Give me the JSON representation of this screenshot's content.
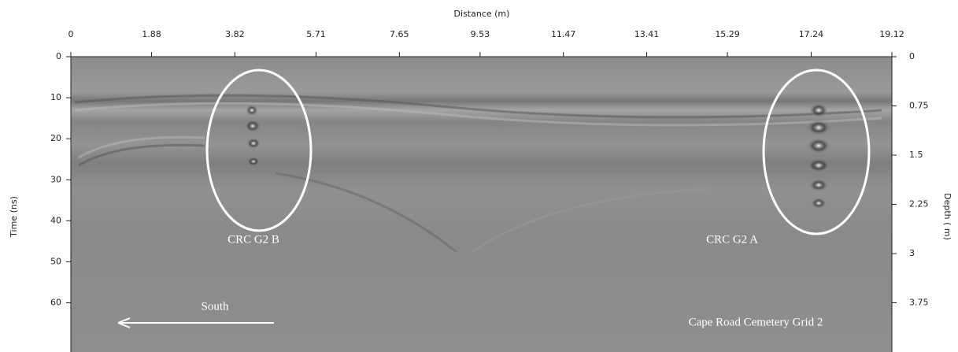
{
  "x_axis": {
    "label": "Distance (m)",
    "range": [
      0,
      19.12
    ],
    "ticks": [
      0,
      1.88,
      3.82,
      5.71,
      7.65,
      9.53,
      11.47,
      13.41,
      15.29,
      17.24,
      19.12
    ]
  },
  "y_axis": {
    "label": "Time (ns)",
    "range": [
      0,
      72
    ],
    "ticks": [
      0,
      10,
      20,
      30,
      40,
      50,
      60
    ]
  },
  "y2_axis": {
    "label": "Depth ( m)",
    "range": [
      0,
      4.5
    ],
    "ticks": [
      0,
      0.75,
      1.5,
      2.25,
      3,
      3.75
    ]
  },
  "annotations": [
    "CRC G2 B",
    "CRC G2 A",
    "South",
    "Cape Road Cemetery Grid 2"
  ]
}
